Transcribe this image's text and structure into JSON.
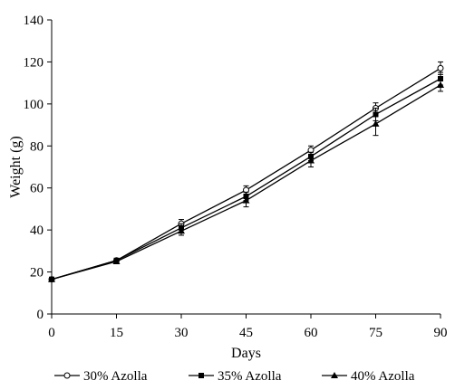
{
  "chart_data": {
    "type": "line",
    "title": "",
    "xlabel": "Days",
    "ylabel": "Weight (g)",
    "x": [
      0,
      15,
      30,
      45,
      60,
      75,
      90
    ],
    "xticks": [
      "0",
      "15",
      "30",
      "45",
      "60",
      "75",
      "90"
    ],
    "yticks": [
      "0",
      "20",
      "40",
      "60",
      "80",
      "100",
      "120",
      "140"
    ],
    "xlim": [
      0,
      90
    ],
    "ylim": [
      0,
      140
    ],
    "grid": false,
    "legend_position": "bottom",
    "series": [
      {
        "name": "30% Azolla",
        "marker": "open-circle",
        "values": [
          16.5,
          25.5,
          43,
          59,
          78,
          98,
          117
        ],
        "errors": [
          1,
          1,
          2,
          2,
          2,
          2.5,
          3
        ]
      },
      {
        "name": "35% Azolla",
        "marker": "filled-square",
        "values": [
          16.5,
          25.5,
          41,
          56,
          75,
          95,
          112
        ],
        "errors": [
          1,
          1,
          2,
          2,
          2,
          3,
          3
        ]
      },
      {
        "name": "40% Azolla",
        "marker": "filled-triangle",
        "values": [
          16.5,
          25,
          39.5,
          54,
          73,
          90.5,
          109
        ],
        "errors": [
          1,
          1,
          2,
          3,
          3,
          5.5,
          3
        ]
      }
    ]
  }
}
